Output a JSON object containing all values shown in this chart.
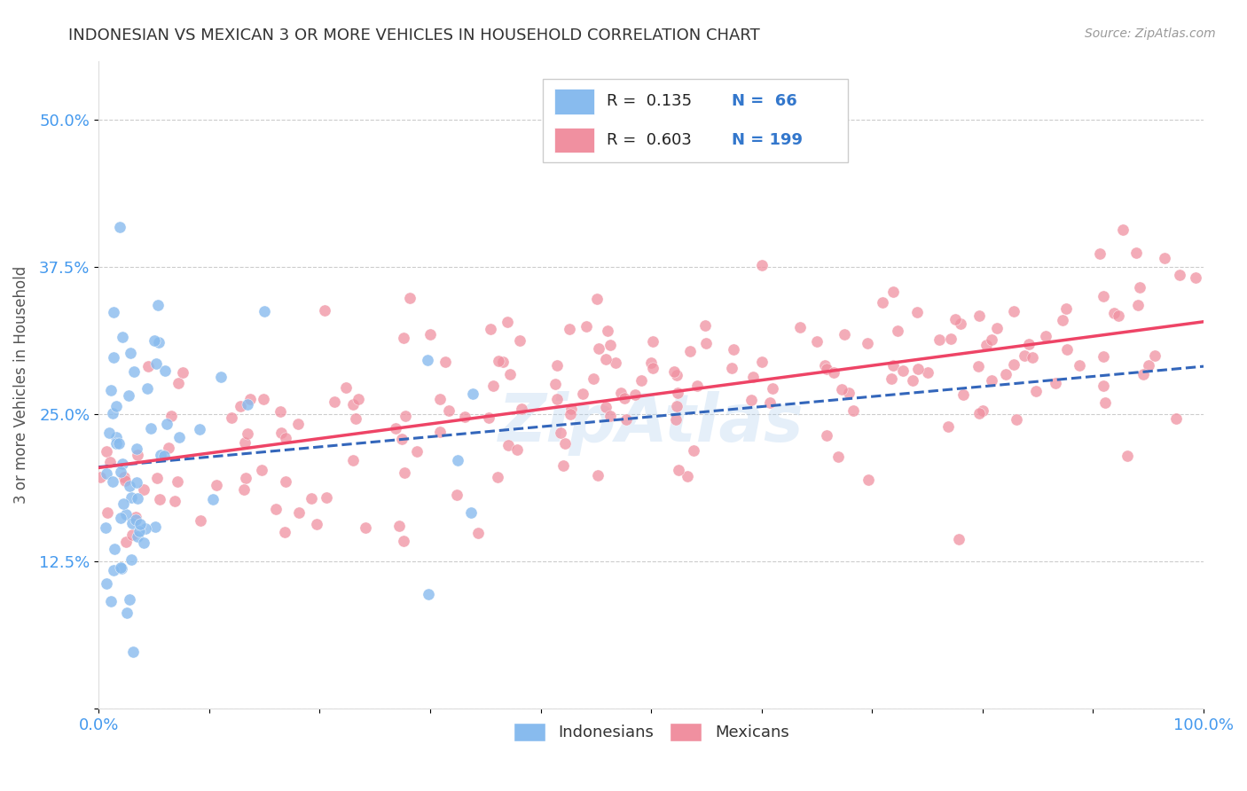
{
  "title": "INDONESIAN VS MEXICAN 3 OR MORE VEHICLES IN HOUSEHOLD CORRELATION CHART",
  "source": "Source: ZipAtlas.com",
  "ylabel": "3 or more Vehicles in Household",
  "watermark": "ZipAtlas",
  "xlim": [
    0.0,
    1.0
  ],
  "ylim": [
    0.0,
    0.55
  ],
  "xticks": [
    0.0,
    0.1,
    0.2,
    0.3,
    0.4,
    0.5,
    0.6,
    0.7,
    0.8,
    0.9,
    1.0
  ],
  "xtick_labels": [
    "0.0%",
    "",
    "",
    "",
    "",
    "",
    "",
    "",
    "",
    "",
    "100.0%"
  ],
  "yticks": [
    0.0,
    0.125,
    0.25,
    0.375,
    0.5
  ],
  "ytick_labels": [
    "",
    "12.5%",
    "25.0%",
    "37.5%",
    "50.0%"
  ],
  "indonesian_color": "#88bbee",
  "mexican_color": "#f090a0",
  "indonesian_line_color": "#3366bb",
  "mexican_line_color": "#ee4466",
  "indonesian_R": 0.135,
  "indonesian_N": 66,
  "mexican_R": 0.603,
  "mexican_N": 199,
  "title_color": "#333333",
  "axis_color": "#4499ee",
  "grid_color": "#cccccc",
  "background_color": "#ffffff",
  "indonesian_seed": 42,
  "mexican_seed": 7,
  "legend_R1": "R =  0.135",
  "legend_N1": "N =  66",
  "legend_R2": "R =  0.603",
  "legend_N2": "N = 199",
  "legend_color1": "#88bbee",
  "legend_color2": "#f090a0"
}
